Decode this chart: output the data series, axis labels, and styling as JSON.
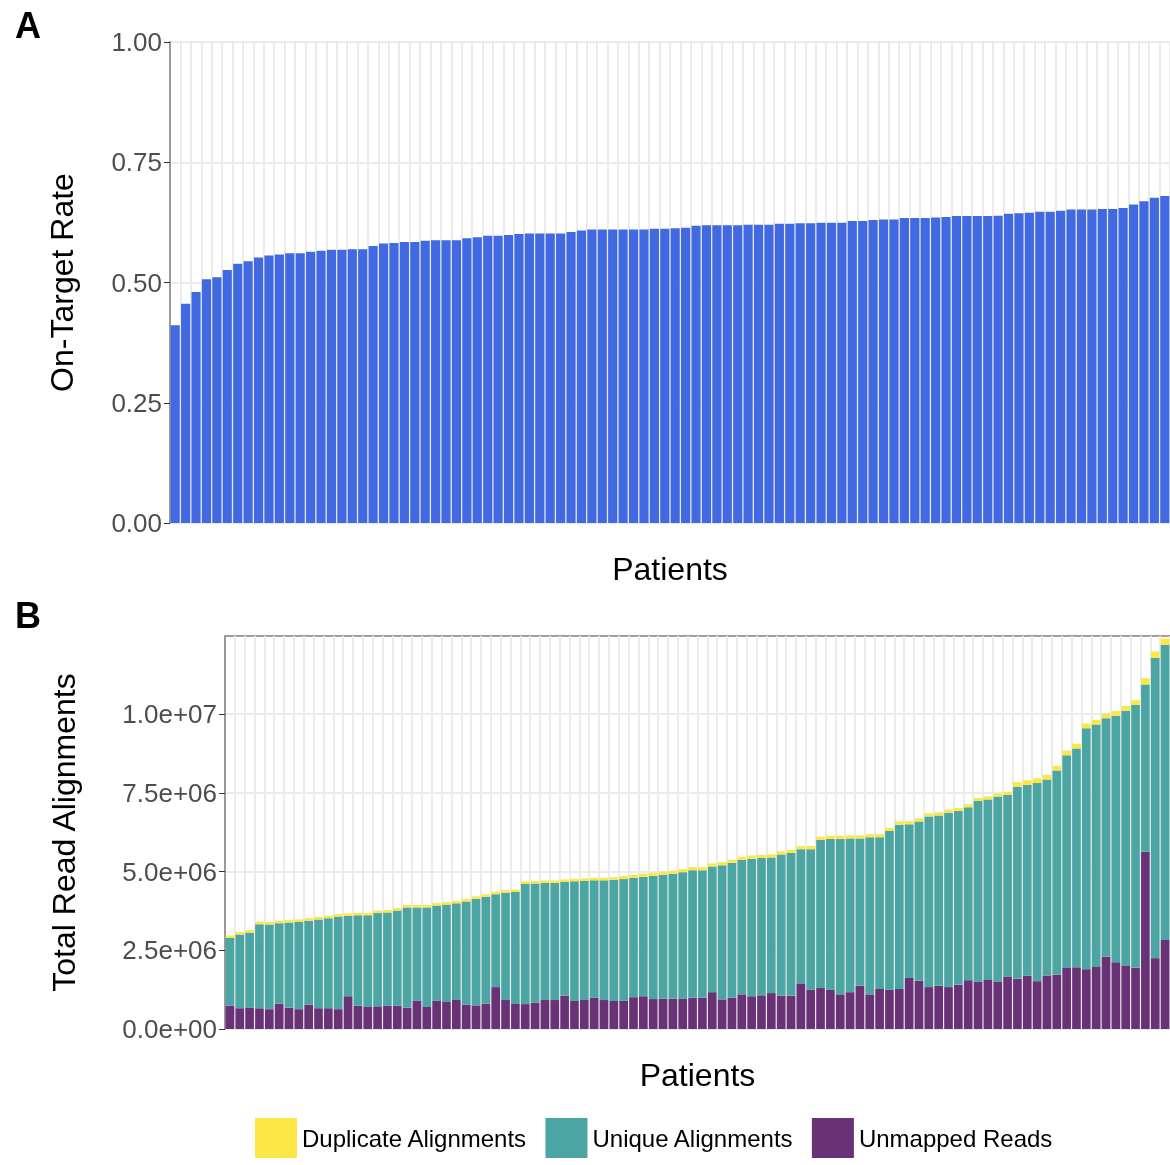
{
  "chart_data": [
    {
      "type": "bar",
      "title": "A",
      "xlabel": "Patients",
      "ylabel": "On-Target Rate",
      "color": "#4169e1",
      "grid": true,
      "tick_labels": "y",
      "categories": [
        null,
        null,
        null,
        null,
        null,
        null,
        null,
        null,
        null,
        null,
        null,
        null,
        null,
        null,
        null,
        null,
        null,
        null,
        null,
        null,
        null,
        null,
        null,
        null,
        null,
        null,
        null,
        null,
        null,
        null,
        null,
        null,
        null,
        null,
        null,
        null,
        null,
        null,
        null,
        null,
        null,
        null,
        null,
        null,
        null,
        null,
        null,
        null,
        null,
        null,
        null,
        null,
        null,
        null,
        null,
        null,
        null,
        null,
        null,
        null,
        null,
        null,
        null,
        null,
        null,
        null,
        null,
        null,
        null,
        null,
        null,
        null,
        null,
        null,
        null,
        null,
        null,
        null,
        null,
        null,
        null,
        null,
        null,
        null,
        null,
        null,
        null,
        null,
        null,
        null,
        null,
        null,
        null,
        null,
        null,
        null
      ],
      "values": [
        0.411,
        0.456,
        0.48,
        0.507,
        0.511,
        0.526,
        0.539,
        0.544,
        0.552,
        0.556,
        0.558,
        0.561,
        0.561,
        0.564,
        0.566,
        0.568,
        0.568,
        0.569,
        0.569,
        0.576,
        0.581,
        0.582,
        0.584,
        0.584,
        0.587,
        0.588,
        0.588,
        0.588,
        0.592,
        0.594,
        0.597,
        0.597,
        0.599,
        0.601,
        0.602,
        0.602,
        0.602,
        0.602,
        0.605,
        0.608,
        0.61,
        0.61,
        0.61,
        0.61,
        0.61,
        0.61,
        0.612,
        0.612,
        0.613,
        0.614,
        0.618,
        0.619,
        0.619,
        0.619,
        0.619,
        0.62,
        0.62,
        0.62,
        0.622,
        0.622,
        0.623,
        0.623,
        0.624,
        0.624,
        0.624,
        0.628,
        0.628,
        0.63,
        0.631,
        0.631,
        0.634,
        0.634,
        0.634,
        0.635,
        0.636,
        0.638,
        0.638,
        0.638,
        0.638,
        0.639,
        0.643,
        0.644,
        0.645,
        0.647,
        0.647,
        0.649,
        0.652,
        0.652,
        0.652,
        0.653,
        0.653,
        0.655,
        0.662,
        0.669,
        0.676,
        0.68
      ],
      "ylim": [
        0,
        1
      ],
      "yticks": [
        {
          "value": 0,
          "label": "0.00"
        },
        {
          "value": 0.25,
          "label": "0.25"
        },
        {
          "value": 0.5,
          "label": "0.50"
        },
        {
          "value": 0.75,
          "label": "0.75"
        },
        {
          "value": 1,
          "label": "1.00"
        }
      ]
    },
    {
      "type": "bar",
      "title": "B",
      "xlabel": "Patients",
      "ylabel": "Total Read Alignments",
      "stacked": true,
      "grid": true,
      "legend": "bottom",
      "tick_labels": "y",
      "categories": [
        null,
        null,
        null,
        null,
        null,
        null,
        null,
        null,
        null,
        null,
        null,
        null,
        null,
        null,
        null,
        null,
        null,
        null,
        null,
        null,
        null,
        null,
        null,
        null,
        null,
        null,
        null,
        null,
        null,
        null,
        null,
        null,
        null,
        null,
        null,
        null,
        null,
        null,
        null,
        null,
        null,
        null,
        null,
        null,
        null,
        null,
        null,
        null,
        null,
        null,
        null,
        null,
        null,
        null,
        null,
        null,
        null,
        null,
        null,
        null,
        null,
        null,
        null,
        null,
        null,
        null,
        null,
        null,
        null,
        null,
        null,
        null,
        null,
        null,
        null,
        null,
        null,
        null,
        null,
        null,
        null,
        null,
        null,
        null,
        null,
        null,
        null,
        null,
        null,
        null,
        null,
        null,
        null,
        null,
        null,
        null
      ],
      "ylim": [
        0,
        12480000.0
      ],
      "yticks": [
        {
          "value": 0,
          "label": "0.0e+00"
        },
        {
          "value": 2500000,
          "label": "2.5e+06"
        },
        {
          "value": 5000000,
          "label": "5.0e+06"
        },
        {
          "value": 7500000,
          "label": "7.5e+06"
        },
        {
          "value": 10000000,
          "label": "1.0e+07"
        }
      ],
      "series": [
        {
          "name": "Unmapped Reads",
          "color": "#693176",
          "values": [
            740000.0,
            660000.0,
            670000.0,
            660000.0,
            630000.0,
            800000.0,
            680000.0,
            630000.0,
            770000.0,
            660000.0,
            660000.0,
            630000.0,
            1040000.0,
            740000.0,
            700000.0,
            720000.0,
            740000.0,
            740000.0,
            680000.0,
            900000.0,
            700000.0,
            900000.0,
            860000.0,
            940000.0,
            770000.0,
            750000.0,
            800000.0,
            1330000.0,
            920000.0,
            790000.0,
            790000.0,
            840000.0,
            920000.0,
            920000.0,
            1060000.0,
            890000.0,
            920000.0,
            1000000.0,
            920000.0,
            890000.0,
            900000.0,
            1010000.0,
            1040000.0,
            950000.0,
            960000.0,
            960000.0,
            970000.0,
            990000.0,
            990000.0,
            1170000.0,
            940000.0,
            990000.0,
            1100000.0,
            1040000.0,
            1070000.0,
            1140000.0,
            1060000.0,
            1060000.0,
            1450000.0,
            1250000.0,
            1300000.0,
            1250000.0,
            1100000.0,
            1170000.0,
            1370000.0,
            1100000.0,
            1270000.0,
            1250000.0,
            1270000.0,
            1620000.0,
            1530000.0,
            1330000.0,
            1370000.0,
            1330000.0,
            1410000.0,
            1550000.0,
            1510000.0,
            1560000.0,
            1510000.0,
            1670000.0,
            1600000.0,
            1690000.0,
            1520000.0,
            1700000.0,
            1720000.0,
            1940000.0,
            1960000.0,
            1900000.0,
            1970000.0,
            2300000.0,
            2120000.0,
            2020000.0,
            1950000.0,
            5630000.0,
            2250000.0,
            2830000.0
          ]
        },
        {
          "name": "Unique Alignments",
          "color": "#4ba5a2",
          "values": [
            2150000.0,
            2340000.0,
            2390000.0,
            2670000.0,
            2690000.0,
            2560000.0,
            2700000.0,
            2770000.0,
            2670000.0,
            2820000.0,
            2860000.0,
            2940000.0,
            2550000.0,
            2870000.0,
            2910000.0,
            2960000.0,
            2960000.0,
            3020000.0,
            3180000.0,
            2960000.0,
            3160000.0,
            3020000.0,
            3090000.0,
            3050000.0,
            3280000.0,
            3380000.0,
            3400000.0,
            2950000.0,
            3410000.0,
            3560000.0,
            3820000.0,
            3780000.0,
            3720000.0,
            3720000.0,
            3610000.0,
            3800000.0,
            3780000.0,
            3720000.0,
            3800000.0,
            3850000.0,
            3860000.0,
            3790000.0,
            3790000.0,
            3910000.0,
            3940000.0,
            3970000.0,
            4010000.0,
            4050000.0,
            4050000.0,
            3990000.0,
            4260000.0,
            4290000.0,
            4270000.0,
            4370000.0,
            4360000.0,
            4310000.0,
            4480000.0,
            4530000.0,
            4260000.0,
            4460000.0,
            4710000.0,
            4790000.0,
            4940000.0,
            4880000.0,
            4680000.0,
            4990000.0,
            4820000.0,
            5040000.0,
            5220000.0,
            4880000.0,
            5060000.0,
            5420000.0,
            5410000.0,
            5540000.0,
            5510000.0,
            5490000.0,
            5730000.0,
            5730000.0,
            5870000.0,
            5760000.0,
            6090000.0,
            6060000.0,
            6290000.0,
            6220000.0,
            6490000.0,
            6750000.0,
            6950000.0,
            7650000.0,
            7700000.0,
            7570000.0,
            7830000.0,
            8090000.0,
            8340000.0,
            5310000.0,
            9540000.0,
            9370000.0
          ]
        },
        {
          "name": "Duplicate Alignments",
          "color": "#fde747",
          "values": [
            80000.0,
            80000.0,
            80000.0,
            80000.0,
            80000.0,
            80000.0,
            80000.0,
            80000.0,
            80000.0,
            80000.0,
            80000.0,
            80000.0,
            80000.0,
            80000.0,
            80000.0,
            80000.0,
            80000.0,
            80000.0,
            80000.0,
            80000.0,
            80000.0,
            80000.0,
            80000.0,
            80000.0,
            80000.0,
            80000.0,
            80000.0,
            80000.0,
            80000.0,
            80000.0,
            80000.0,
            80000.0,
            80000.0,
            80000.0,
            80000.0,
            80000.0,
            80000.0,
            80000.0,
            80000.0,
            80000.0,
            100000.0,
            100000.0,
            100000.0,
            100000.0,
            100000.0,
            100000.0,
            100000.0,
            100000.0,
            100000.0,
            100000.0,
            100000.0,
            100000.0,
            100000.0,
            100000.0,
            100000.0,
            100000.0,
            100000.0,
            100000.0,
            100000.0,
            100000.0,
            100000.0,
            100000.0,
            100000.0,
            100000.0,
            100000.0,
            100000.0,
            100000.0,
            100000.0,
            100000.0,
            100000.0,
            100000.0,
            100000.0,
            100000.0,
            100000.0,
            100000.0,
            100000.0,
            100000.0,
            100000.0,
            100000.0,
            100000.0,
            150000.0,
            150000.0,
            150000.0,
            150000.0,
            150000.0,
            150000.0,
            150000.0,
            150000.0,
            150000.0,
            150000.0,
            150000.0,
            150000.0,
            150000.0,
            200000.0,
            200000.0,
            200000.0
          ]
        }
      ]
    }
  ]
}
